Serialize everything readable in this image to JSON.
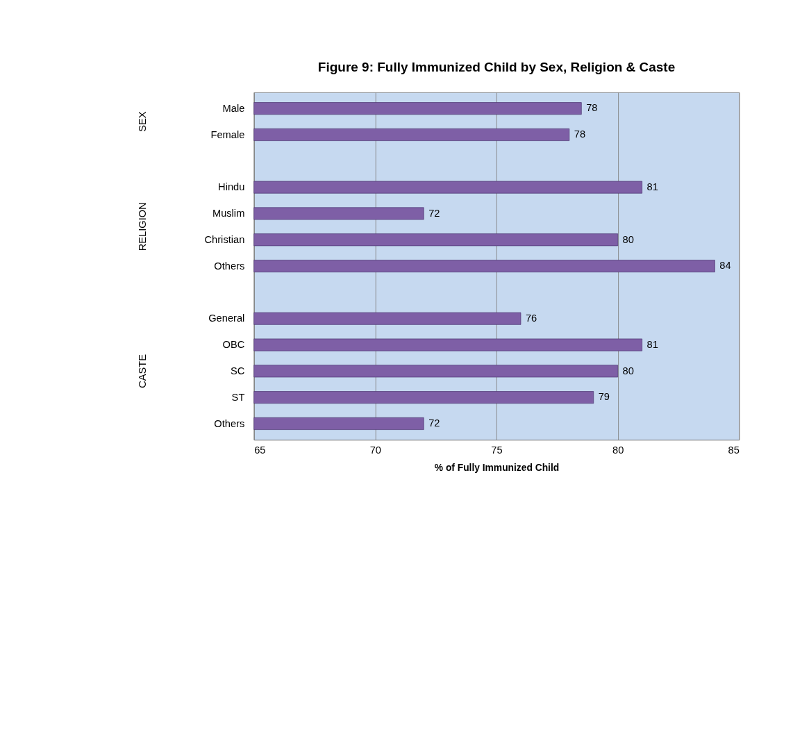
{
  "chart_data": {
    "type": "bar",
    "orientation": "horizontal",
    "title": "Figure 9: Fully Immunized Child by Sex, Religion & Caste",
    "xlabel": "% of Fully Immunized Child",
    "categories": [
      "Male",
      "Female",
      null,
      "Hindu",
      "Muslim",
      "Christian",
      "Others",
      null,
      "General",
      "OBC",
      "SC",
      "ST",
      "Others"
    ],
    "values": [
      78.5,
      78.0,
      null,
      81,
      72,
      80,
      84,
      null,
      76,
      81,
      80,
      79,
      72
    ],
    "value_labels": [
      "78",
      "78",
      null,
      "81",
      "72",
      "80",
      "84",
      null,
      "76",
      "81",
      "80",
      "79",
      "72"
    ],
    "color": "#7e5fa6",
    "xlim": [
      65,
      85
    ],
    "xticks": [
      65,
      70,
      75,
      80,
      85
    ],
    "grid": "x",
    "annotations": [
      "SEX",
      "RELIGION",
      "CASTE"
    ]
  }
}
